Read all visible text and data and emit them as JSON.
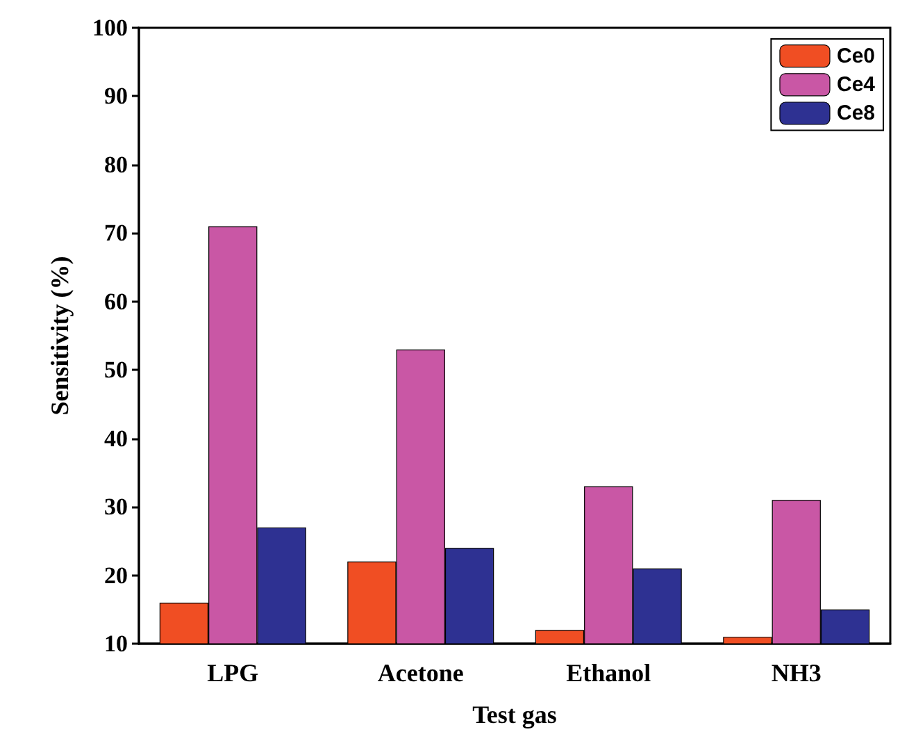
{
  "chart_data": {
    "type": "bar",
    "xlabel": "Test gas",
    "ylabel": "Sensitivity (%)",
    "categories": [
      "LPG",
      "Acetone",
      "Ethanol",
      "NH3"
    ],
    "series": [
      {
        "name": "Ce0",
        "color": "#f04e23",
        "values": [
          16,
          22,
          12,
          11
        ]
      },
      {
        "name": "Ce4",
        "color": "#c957a5",
        "values": [
          71,
          53,
          33,
          31
        ]
      },
      {
        "name": "Ce8",
        "color": "#2e3192",
        "values": [
          27,
          24,
          21,
          15
        ]
      }
    ],
    "ylim": [
      10,
      100
    ],
    "yticks": [
      10,
      20,
      30,
      40,
      50,
      60,
      70,
      80,
      90,
      100
    ],
    "grid": false,
    "legend": "top right"
  }
}
